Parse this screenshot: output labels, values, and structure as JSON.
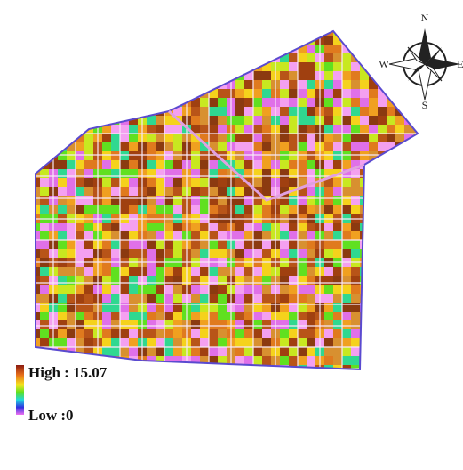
{
  "compass": {
    "north": "N",
    "south": "S",
    "west": "W",
    "east": "E"
  },
  "legend": {
    "high": "High : 15.07",
    "low": "Low :0"
  }
}
